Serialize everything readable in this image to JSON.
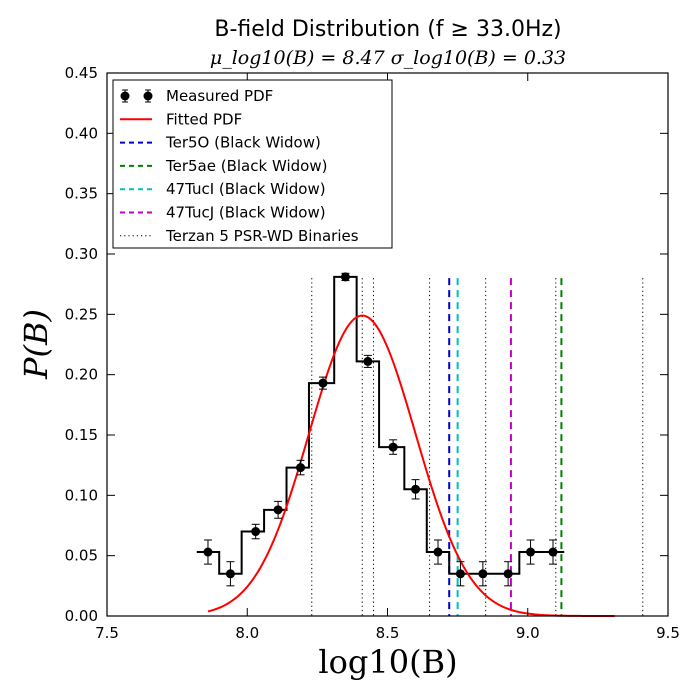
{
  "chart_data": {
    "type": "histogram",
    "title": "B-field Distribution (f ≥ 33.0Hz)",
    "subtitle": "μ_log10(B) = 8.47   σ_log10(B) = 0.33",
    "xlabel": "log10(B)",
    "ylabel": "P(B)",
    "xlim": [
      7.5,
      9.5
    ],
    "ylim": [
      0.0,
      0.45
    ],
    "xticks": [
      "7.5",
      "8.0",
      "8.5",
      "9.0",
      "9.5"
    ],
    "yticks": [
      "0.00",
      "0.05",
      "0.10",
      "0.15",
      "0.20",
      "0.25",
      "0.30",
      "0.35",
      "0.40",
      "0.45"
    ],
    "xtick_values": [
      7.5,
      8.0,
      8.5,
      9.0,
      9.5
    ],
    "ytick_values": [
      0.0,
      0.05,
      0.1,
      0.15,
      0.2,
      0.25,
      0.3,
      0.35,
      0.4,
      0.45
    ],
    "histogram": {
      "bin_edges": [
        7.82,
        7.9,
        7.98,
        8.06,
        8.14,
        8.22,
        8.31,
        8.39,
        8.47,
        8.56,
        8.64,
        8.72,
        8.8,
        8.88,
        8.97,
        9.05,
        9.13
      ],
      "note": "step outline of the measured PDF"
    },
    "measured_pdf": {
      "name": "Measured PDF",
      "x": [
        7.86,
        7.94,
        8.03,
        8.11,
        8.19,
        8.27,
        8.35,
        8.43,
        8.52,
        8.6,
        8.68,
        8.76,
        8.84,
        8.93,
        9.01,
        9.09
      ],
      "y": [
        0.053,
        0.035,
        0.07,
        0.088,
        0.123,
        0.193,
        0.281,
        0.211,
        0.14,
        0.105,
        0.053,
        0.035,
        0.035,
        0.035,
        0.053,
        0.053
      ],
      "yerr": [
        0.01,
        0.01,
        0.006,
        0.007,
        0.006,
        0.005,
        0.003,
        0.005,
        0.006,
        0.008,
        0.01,
        0.01,
        0.01,
        0.01,
        0.01,
        0.01
      ]
    },
    "fitted_pdf": {
      "name": "Fitted PDF",
      "color": "#ff0000",
      "mu": 8.41,
      "sigma": 0.19,
      "peak": 0.249,
      "x_range": [
        7.86,
        9.31
      ]
    },
    "reference_lines": [
      {
        "name": "Ter5O (Black Widow)",
        "x": 8.72,
        "color": "#0000cc",
        "style": "dashed"
      },
      {
        "name": "Ter5ae (Black Widow)",
        "x": 9.12,
        "color": "#008000",
        "style": "dashed"
      },
      {
        "name": "47TucI (Black Widow)",
        "x": 8.75,
        "color": "#00bfbf",
        "style": "dashed"
      },
      {
        "name": "47TucJ (Black Widow)",
        "x": 8.94,
        "color": "#bf00bf",
        "style": "dashed"
      }
    ],
    "binary_lines": {
      "name": "Terzan 5 PSR-WD Binaries",
      "x": [
        8.23,
        8.41,
        8.45,
        8.65,
        8.85,
        9.1,
        9.41
      ],
      "color": "#000000",
      "style": "dotted"
    },
    "legend": {
      "placement": "top-left",
      "entries": [
        "Measured PDF",
        "Fitted PDF",
        "Ter5O (Black Widow)",
        "Ter5ae (Black Widow)",
        "47TucI (Black Widow)",
        "47TucJ (Black Widow)",
        "Terzan 5 PSR-WD Binaries"
      ]
    }
  }
}
